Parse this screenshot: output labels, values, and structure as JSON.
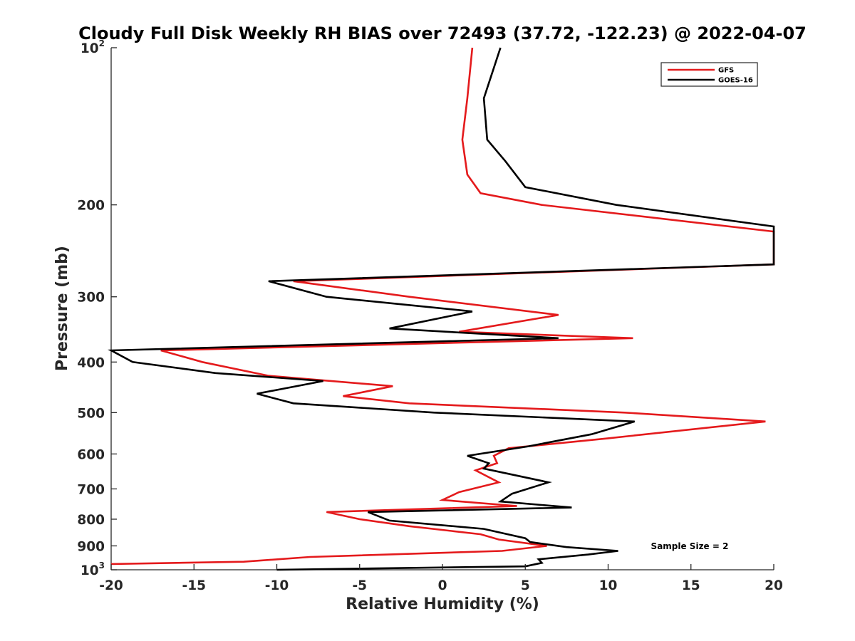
{
  "chart_data": {
    "type": "line",
    "title": "Cloudy Full Disk Weekly RH BIAS over 72493 (37.72, -122.23) @ 2022-04-07",
    "xlabel": "Relative Humidity (%)",
    "ylabel": "Pressure (mb)",
    "xlim": [
      -20,
      20
    ],
    "ylim": [
      100,
      1000
    ],
    "y_scale": "log",
    "y_reversed": true,
    "grid": false,
    "legend_position": "top-right",
    "x_ticks": [
      -20,
      -15,
      -10,
      -5,
      0,
      5,
      10,
      15,
      20
    ],
    "x_tick_labels": [
      "-20",
      "-15",
      "-10",
      "-5",
      "0",
      "5",
      "10",
      "15",
      "20"
    ],
    "y_ticks": [
      {
        "value": 100,
        "base": "10",
        "exp": "2"
      },
      {
        "value": 200,
        "label": "200"
      },
      {
        "value": 300,
        "label": "300"
      },
      {
        "value": 400,
        "label": "400"
      },
      {
        "value": 500,
        "label": "500"
      },
      {
        "value": 600,
        "label": "600"
      },
      {
        "value": 700,
        "label": "700"
      },
      {
        "value": 800,
        "label": "800"
      },
      {
        "value": 900,
        "label": "900"
      },
      {
        "value": 1000,
        "base": "10",
        "exp": "3"
      }
    ],
    "annotation": "Sample Size = 2",
    "series": [
      {
        "name": "GFS",
        "color": "#e41a1c",
        "points": [
          [
            1.8,
            100
          ],
          [
            1.5,
            125
          ],
          [
            1.2,
            150
          ],
          [
            1.5,
            175
          ],
          [
            2.3,
            190
          ],
          [
            6,
            200
          ],
          [
            20,
            225
          ],
          [
            20,
            260
          ],
          [
            -9,
            280
          ],
          [
            -2,
            300
          ],
          [
            7,
            325
          ],
          [
            1,
            350
          ],
          [
            11.5,
            360
          ],
          [
            -17,
            380
          ],
          [
            -14.5,
            400
          ],
          [
            -10.5,
            425
          ],
          [
            -3,
            445
          ],
          [
            -6,
            465
          ],
          [
            -2,
            480
          ],
          [
            11,
            500
          ],
          [
            19.5,
            520
          ],
          [
            10,
            560
          ],
          [
            4,
            585
          ],
          [
            3.1,
            605
          ],
          [
            3.3,
            625
          ],
          [
            2,
            645
          ],
          [
            3.4,
            680
          ],
          [
            1,
            710
          ],
          [
            0,
            735
          ],
          [
            4.5,
            755
          ],
          [
            -7,
            775
          ],
          [
            -5,
            800
          ],
          [
            -2,
            825
          ],
          [
            2.3,
            855
          ],
          [
            3.4,
            875
          ],
          [
            6.3,
            900
          ],
          [
            3.6,
            920
          ],
          [
            -8,
            945
          ],
          [
            -12,
            965
          ],
          [
            -20,
            975
          ]
        ]
      },
      {
        "name": "GOES-16",
        "color": "#000000",
        "points": [
          [
            3.5,
            100
          ],
          [
            2.5,
            125
          ],
          [
            2.7,
            150
          ],
          [
            3.8,
            165
          ],
          [
            5,
            185
          ],
          [
            10.5,
            200
          ],
          [
            20,
            220
          ],
          [
            20,
            260
          ],
          [
            -10.5,
            280
          ],
          [
            -7,
            300
          ],
          [
            1.8,
            320
          ],
          [
            -3.2,
            345
          ],
          [
            7,
            360
          ],
          [
            -20,
            380
          ],
          [
            -18.7,
            400
          ],
          [
            -13.7,
            420
          ],
          [
            -7.2,
            435
          ],
          [
            -11.2,
            460
          ],
          [
            -9,
            480
          ],
          [
            -0.5,
            500
          ],
          [
            11.6,
            520
          ],
          [
            9,
            550
          ],
          [
            5.2,
            580
          ],
          [
            1.5,
            605
          ],
          [
            2.8,
            625
          ],
          [
            2.5,
            640
          ],
          [
            6.4,
            680
          ],
          [
            4.2,
            715
          ],
          [
            3.5,
            740
          ],
          [
            7.8,
            760
          ],
          [
            -4.5,
            775
          ],
          [
            -3.2,
            805
          ],
          [
            2.5,
            835
          ],
          [
            5,
            870
          ],
          [
            5.3,
            885
          ],
          [
            7.5,
            905
          ],
          [
            10.6,
            920
          ],
          [
            8.8,
            935
          ],
          [
            5.8,
            955
          ],
          [
            6,
            970
          ],
          [
            5,
            985
          ],
          [
            -10,
            1000
          ]
        ]
      }
    ]
  }
}
